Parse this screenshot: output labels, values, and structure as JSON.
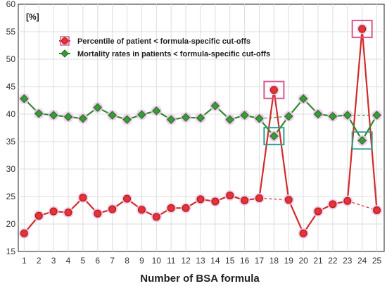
{
  "chart_data": {
    "type": "line",
    "xlabel": "Number of BSA formula",
    "ylabel": "[%]",
    "x": [
      1,
      2,
      3,
      4,
      5,
      6,
      7,
      8,
      9,
      10,
      11,
      12,
      13,
      14,
      15,
      16,
      17,
      18,
      19,
      20,
      21,
      22,
      23,
      24,
      25
    ],
    "ylim": [
      15,
      60
    ],
    "yticks": [
      15,
      20,
      25,
      30,
      35,
      40,
      45,
      50,
      55,
      60
    ],
    "grid": true,
    "legend_position": "top-left",
    "series": [
      {
        "name": "Percentile of patient < formula-specific cut-offs",
        "color": "#d42a2a",
        "marker": "circle",
        "values": [
          18.3,
          21.5,
          22.3,
          22.1,
          24.8,
          21.9,
          22.7,
          24.6,
          22.6,
          21.3,
          22.9,
          22.9,
          24.5,
          24.1,
          25.2,
          24.3,
          24.7,
          44.4,
          24.4,
          18.3,
          22.3,
          23.6,
          24.2,
          55.5,
          22.5
        ],
        "highlighted": [
          18,
          24
        ],
        "highlight_color": "#d9588f"
      },
      {
        "name": "Mortality rates in patients < formula-specific cut-offs",
        "color": "#2f8a2f",
        "marker": "diamond",
        "values": [
          42.8,
          40.1,
          39.8,
          39.5,
          39.2,
          41.2,
          39.8,
          39.0,
          39.9,
          40.6,
          39.0,
          39.4,
          39.3,
          41.5,
          39.0,
          39.8,
          39.2,
          36.0,
          39.6,
          42.8,
          40.0,
          39.6,
          39.8,
          35.2,
          39.8
        ],
        "highlighted": [
          18,
          24
        ],
        "highlight_color": "#2a9d8f"
      }
    ]
  }
}
